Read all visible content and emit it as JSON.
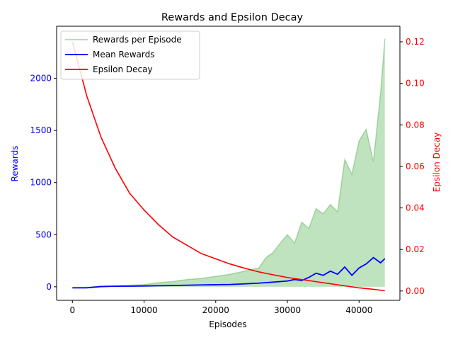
{
  "chart_data": {
    "type": "line",
    "title": "Rewards and Epsilon Decay",
    "xlabel": "Episodes",
    "ylabel": "Rewards",
    "y2label": "Epsilon Decay",
    "xlim": [
      -2200,
      45700
    ],
    "ylim": [
      -130,
      2500
    ],
    "y2lim": [
      -0.0045,
      0.1275
    ],
    "x_ticks": [
      0,
      10000,
      20000,
      30000,
      40000
    ],
    "y_ticks": [
      0,
      500,
      1000,
      1500,
      2000
    ],
    "y2_ticks": [
      0.0,
      0.02,
      0.04,
      0.06,
      0.08,
      0.1,
      0.12
    ],
    "y2_tick_labels": [
      "0.00",
      "0.02",
      "0.04",
      "0.06",
      "0.08",
      "0.10",
      "0.12"
    ],
    "legend_position": "top-left",
    "grid": false,
    "colors": {
      "rewards": "#2ca02c",
      "mean": "#0000ff",
      "epsilon": "#ff0000",
      "left_axis": "#0000ff",
      "right_axis": "#ff0000"
    },
    "series": [
      {
        "name": "Rewards per Episode",
        "axis": "left",
        "x": [
          0,
          2000,
          4000,
          6000,
          8000,
          10000,
          12000,
          14000,
          16000,
          18000,
          20000,
          22000,
          24000,
          26000,
          27000,
          28000,
          29000,
          30000,
          31000,
          32000,
          33000,
          34000,
          35000,
          36000,
          37000,
          38000,
          39000,
          40000,
          41000,
          42000,
          43000,
          43600
        ],
        "y": [
          -10,
          -5,
          5,
          10,
          15,
          20,
          40,
          50,
          70,
          80,
          100,
          120,
          150,
          180,
          280,
          330,
          420,
          500,
          420,
          620,
          560,
          750,
          700,
          790,
          720,
          1220,
          1080,
          1400,
          1510,
          1200,
          1860,
          2380
        ]
      },
      {
        "name": "Mean Rewards",
        "axis": "left",
        "x": [
          0,
          2000,
          4000,
          6000,
          8000,
          10000,
          12000,
          14000,
          16000,
          18000,
          20000,
          22000,
          24000,
          26000,
          28000,
          30000,
          31000,
          32000,
          33000,
          34000,
          35000,
          36000,
          37000,
          38000,
          39000,
          40000,
          41000,
          42000,
          43000,
          43600
        ],
        "y": [
          -10,
          -10,
          2,
          5,
          6,
          8,
          10,
          12,
          15,
          18,
          20,
          22,
          28,
          35,
          45,
          55,
          70,
          60,
          90,
          130,
          110,
          150,
          120,
          190,
          110,
          180,
          220,
          280,
          230,
          270
        ]
      },
      {
        "name": "Epsilon Decay",
        "axis": "right",
        "x": [
          0,
          2000,
          4000,
          6000,
          8000,
          10000,
          12000,
          14000,
          16000,
          18000,
          20000,
          22000,
          24000,
          26000,
          28000,
          30000,
          32000,
          34000,
          36000,
          38000,
          40000,
          42000,
          43600
        ],
        "y": [
          0.12,
          0.094,
          0.074,
          0.059,
          0.047,
          0.039,
          0.032,
          0.026,
          0.022,
          0.018,
          0.0155,
          0.013,
          0.011,
          0.0092,
          0.0078,
          0.0065,
          0.0055,
          0.0045,
          0.0035,
          0.0025,
          0.0015,
          0.0008,
          0.0001
        ]
      }
    ]
  }
}
